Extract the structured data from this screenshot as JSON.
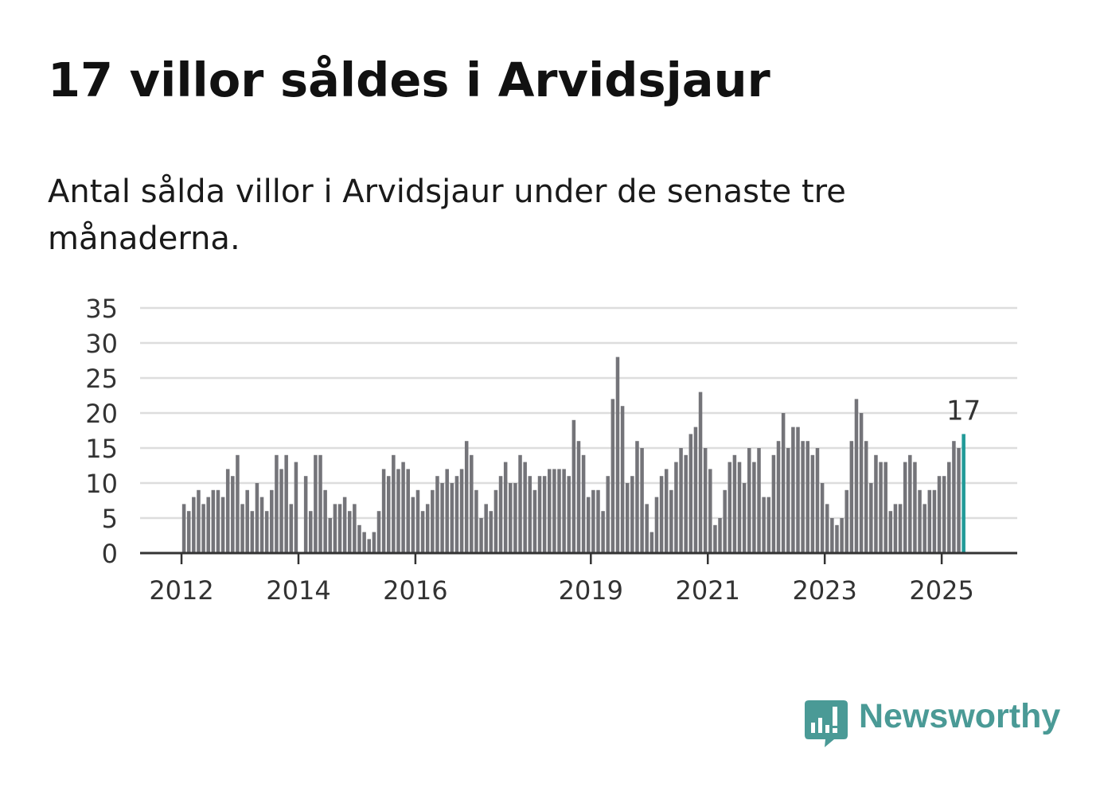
{
  "title": "17 villor såldes i Arvidsjaur",
  "subtitle": "Antal sålda villor i Arvidsjaur under de senaste tre månaderna.",
  "brand": {
    "name": "Newsworthy",
    "icon": "newsworthy-logo-icon",
    "color": "#4a9a96"
  },
  "colors": {
    "bar": "#747479",
    "highlight": "#219a98",
    "grid": "#dddddd",
    "axis": "#333333"
  },
  "chart_data": {
    "type": "bar",
    "ylim": [
      0,
      35
    ],
    "y_ticks": [
      0,
      5,
      10,
      15,
      20,
      25,
      30,
      35
    ],
    "x_tick_labels": [
      "2012",
      "2014",
      "2016",
      "2019",
      "2021",
      "2023",
      "2025"
    ],
    "x_range": [
      "2011-04",
      "2026-04"
    ],
    "start_month": "2012-01",
    "grid": true,
    "highlight_label": "17",
    "values": [
      7,
      6,
      8,
      9,
      7,
      8,
      9,
      9,
      8,
      12,
      11,
      14,
      7,
      9,
      6,
      10,
      8,
      6,
      9,
      14,
      12,
      14,
      7,
      13,
      0,
      11,
      6,
      14,
      14,
      9,
      5,
      7,
      7,
      8,
      6,
      7,
      4,
      3,
      2,
      3,
      6,
      12,
      11,
      14,
      12,
      13,
      12,
      8,
      9,
      6,
      7,
      9,
      11,
      10,
      12,
      10,
      11,
      12,
      16,
      14,
      9,
      5,
      7,
      6,
      9,
      11,
      13,
      10,
      10,
      14,
      13,
      11,
      9,
      11,
      11,
      12,
      12,
      12,
      12,
      11,
      19,
      16,
      14,
      8,
      9,
      9,
      6,
      11,
      22,
      28,
      21,
      10,
      11,
      16,
      15,
      7,
      3,
      8,
      11,
      12,
      9,
      13,
      15,
      14,
      17,
      18,
      23,
      15,
      12,
      4,
      5,
      9,
      13,
      14,
      13,
      10,
      15,
      13,
      15,
      8,
      8,
      14,
      16,
      20,
      15,
      18,
      18,
      16,
      16,
      14,
      15,
      10,
      7,
      5,
      4,
      5,
      9,
      16,
      22,
      20,
      16,
      10,
      14,
      13,
      13,
      6,
      7,
      7,
      13,
      14,
      13,
      9,
      7,
      9,
      9,
      11,
      11,
      13,
      16,
      15,
      17
    ]
  }
}
